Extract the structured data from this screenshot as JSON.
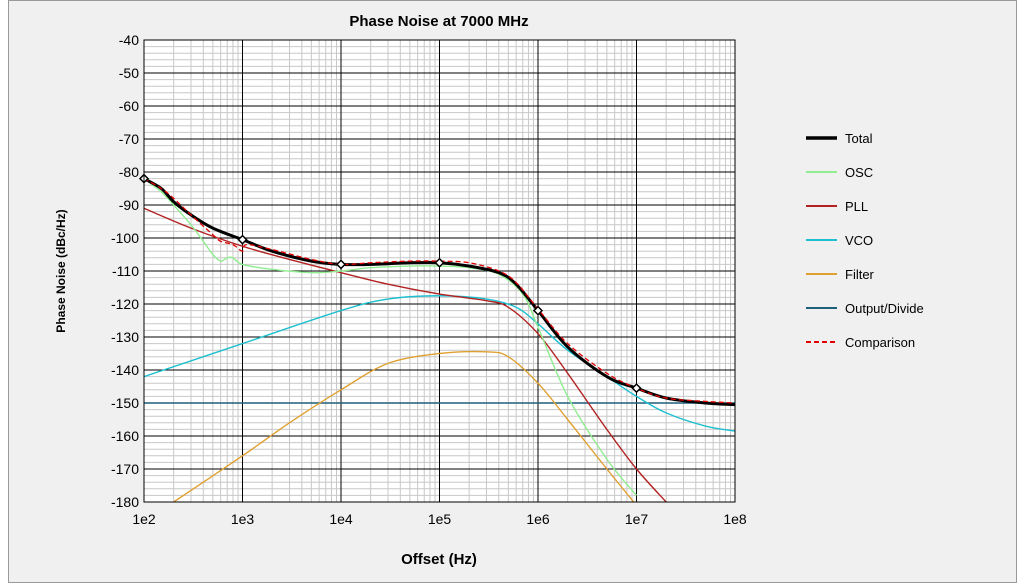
{
  "chart_data": {
    "type": "line",
    "title": "Phase Noise at 7000 MHz",
    "xlabel": "Offset (Hz)",
    "ylabel": "Phase Noise (dBc/Hz)",
    "x_scale": "log",
    "xlim": [
      100,
      100000000
    ],
    "ylim": [
      -180,
      -40
    ],
    "x_ticks": [
      "1e2",
      "1e3",
      "1e4",
      "1e5",
      "1e6",
      "1e7",
      "1e8"
    ],
    "y_ticks": [
      "-40",
      "-50",
      "-60",
      "-70",
      "-80",
      "-90",
      "-100",
      "-110",
      "-120",
      "-130",
      "-140",
      "-150",
      "-160",
      "-170",
      "-180"
    ],
    "grid": true,
    "legend_position": "right",
    "series": [
      {
        "name": "Total",
        "color": "#000000",
        "style": "solid-thick",
        "x": [
          100,
          150,
          200,
          300,
          500,
          1000,
          2000,
          5000,
          10000,
          20000,
          50000,
          100000,
          200000,
          400000,
          600000,
          1000000,
          2000000,
          5000000,
          10000000,
          20000000,
          50000000,
          100000000
        ],
        "y": [
          -82,
          -85,
          -89,
          -93,
          -97,
          -100.5,
          -104,
          -107,
          -108,
          -108,
          -107.5,
          -107.5,
          -108.5,
          -110.5,
          -114,
          -122,
          -133,
          -142,
          -145.5,
          -148.5,
          -150,
          -150.5
        ]
      },
      {
        "name": "OSC",
        "color": "#90ee90",
        "style": "solid",
        "x": [
          100,
          150,
          200,
          300,
          400,
          500,
          600,
          700,
          800,
          1000,
          2000,
          5000,
          10000,
          20000,
          50000,
          100000,
          200000,
          400000,
          700000,
          1000000,
          2000000,
          5000000,
          10000000
        ],
        "y": [
          -82,
          -86,
          -90,
          -96,
          -101,
          -105,
          -107,
          -106,
          -106,
          -108,
          -109.5,
          -110.5,
          -110,
          -109,
          -108.5,
          -108.5,
          -109,
          -111,
          -117,
          -127,
          -148,
          -167,
          -178
        ]
      },
      {
        "name": "PLL",
        "color": "#b22222",
        "style": "solid",
        "x": [
          100,
          300,
          1000,
          3000,
          10000,
          30000,
          100000,
          300000,
          500000,
          1000000,
          2000000,
          5000000,
          10000000,
          20000000
        ],
        "y": [
          -91,
          -97,
          -102.5,
          -106.5,
          -110.5,
          -114,
          -117,
          -119,
          -121,
          -129,
          -141,
          -158,
          -170,
          -180
        ]
      },
      {
        "name": "VCO",
        "color": "#1ec0d0",
        "style": "solid",
        "x": [
          100,
          1000,
          10000,
          30000,
          100000,
          300000,
          600000,
          1000000,
          2000000,
          5000000,
          10000000,
          20000000,
          50000000,
          100000000
        ],
        "y": [
          -142,
          -132,
          -122,
          -118.5,
          -117.5,
          -118.5,
          -121,
          -126,
          -134,
          -142,
          -148,
          -153,
          -157,
          -158.5
        ]
      },
      {
        "name": "Filter",
        "color": "#e0a030",
        "style": "solid",
        "x": [
          200,
          1000,
          3000,
          10000,
          30000,
          100000,
          300000,
          500000,
          1000000,
          2000000,
          5000000,
          10000000
        ],
        "y": [
          -180,
          -166,
          -156,
          -146,
          -138,
          -135,
          -134.5,
          -136,
          -144,
          -155,
          -170,
          -181
        ]
      },
      {
        "name": "Output/Divide",
        "color": "#1f5f7a",
        "style": "solid",
        "x": [
          100,
          100000000
        ],
        "y": [
          -150,
          -150
        ]
      },
      {
        "name": "Comparison",
        "color": "#e00000",
        "style": "dashed",
        "x": [
          100,
          150,
          200,
          300,
          500,
          600,
          800,
          1000,
          1100,
          2000,
          5000,
          10000,
          20000,
          50000,
          100000,
          200000,
          400000,
          600000,
          1000000,
          2000000,
          5000000,
          10000000,
          20000000,
          50000000,
          100000000
        ],
        "y": [
          -82,
          -85,
          -88,
          -93,
          -99,
          -101,
          -102,
          -104,
          -102,
          -103.5,
          -106.5,
          -108,
          -107.5,
          -107,
          -107,
          -107.5,
          -110,
          -113.5,
          -121.5,
          -132,
          -141,
          -145.5,
          -148.5,
          -149.5,
          -150
        ]
      }
    ],
    "markers": {
      "series": "Total",
      "x": [
        100,
        1000,
        10000,
        100000,
        1000000,
        10000000
      ],
      "y": [
        -82,
        -100.5,
        -108,
        -107.5,
        -122,
        -145.5
      ]
    }
  }
}
